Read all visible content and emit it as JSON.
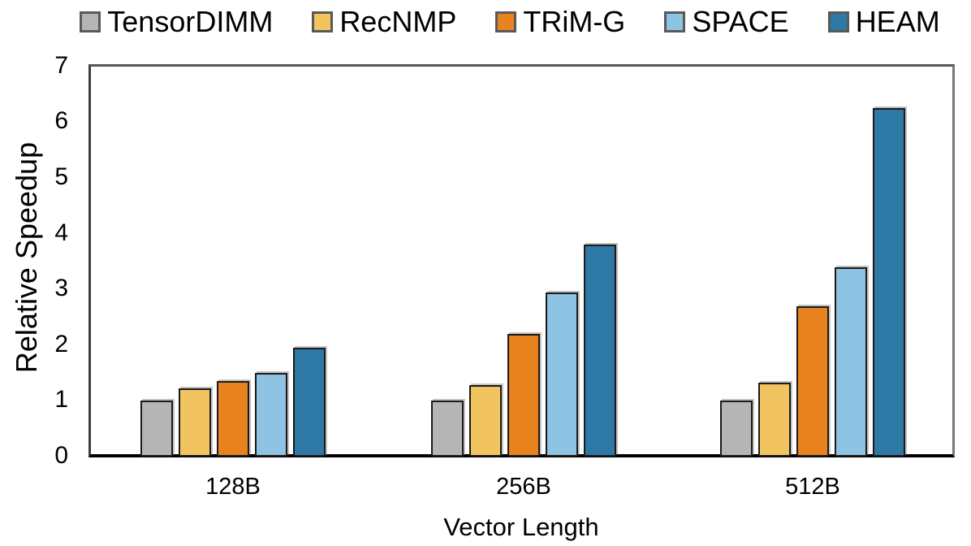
{
  "chart_data": {
    "type": "bar",
    "title": "",
    "xlabel": "Vector Length",
    "ylabel": "Relative Speedup",
    "categories": [
      "128B",
      "256B",
      "512B"
    ],
    "series": [
      {
        "name": "TensorDIMM",
        "color": "#b5b5b5",
        "values": [
          1.0,
          1.0,
          1.0
        ]
      },
      {
        "name": "RecNMP",
        "color": "#f2c45f",
        "values": [
          1.22,
          1.28,
          1.33
        ]
      },
      {
        "name": "TRiM-G",
        "color": "#e8821e",
        "values": [
          1.35,
          2.2,
          2.7
        ]
      },
      {
        "name": "SPACE",
        "color": "#8fc3e3",
        "values": [
          1.5,
          2.95,
          3.4
        ]
      },
      {
        "name": "HEAM",
        "color": "#2e78a6",
        "values": [
          1.95,
          3.8,
          6.25
        ]
      }
    ],
    "ylim": [
      0,
      7
    ],
    "yticks": [
      0,
      1,
      2,
      3,
      4,
      5,
      6,
      7
    ],
    "grid": "off",
    "legend_position": "top",
    "bar_border_color": "#1a1a1a",
    "legend_swatch_border_color": "#595959"
  }
}
